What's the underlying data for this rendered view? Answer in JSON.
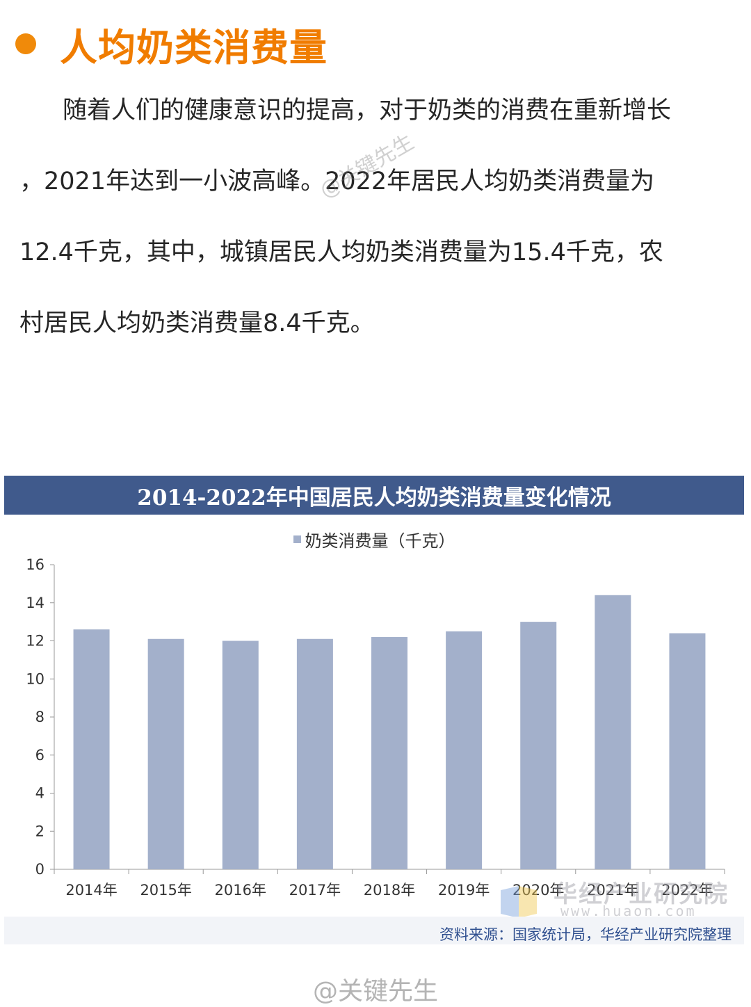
{
  "heading": "人均奶类消费量",
  "intro_lines": [
    "随着人们的健康意识的提高，对于奶类的消费在重新增长",
    "，2021年达到一小波高峰。2022年居民人均奶类消费量为",
    "12.4千克，其中，城镇居民人均奶类消费量为15.4千克，农",
    "村居民人均奶类消费量8.4千克。"
  ],
  "watermark_text": "@关键先生",
  "chart_data": {
    "type": "bar",
    "title": "2014-2022年中国居民人均奶类消费量变化情况",
    "categories": [
      "2014年",
      "2015年",
      "2016年",
      "2017年",
      "2018年",
      "2019年",
      "2020年",
      "2021年",
      "2022年"
    ],
    "series": [
      {
        "name": "奶类消费量（千克）",
        "values": [
          12.6,
          12.1,
          12.0,
          12.1,
          12.2,
          12.5,
          13.0,
          14.4,
          12.4
        ]
      }
    ],
    "ylim": [
      0,
      16
    ],
    "yticks": [
      "0",
      "2",
      "4",
      "6",
      "8",
      "10",
      "12",
      "14",
      "16"
    ],
    "grid": false,
    "legend_position": "top-center",
    "bar_color": "#a3b0cb",
    "source": "资料来源：国家统计局，华经产业研究院整理"
  },
  "chart_brand": {
    "name": "华经产业研究院",
    "url": "www.huaon.com"
  },
  "colors": {
    "accent": "#f07c00",
    "title_bar": "#405a8c",
    "source_text": "#2f4f8f"
  }
}
